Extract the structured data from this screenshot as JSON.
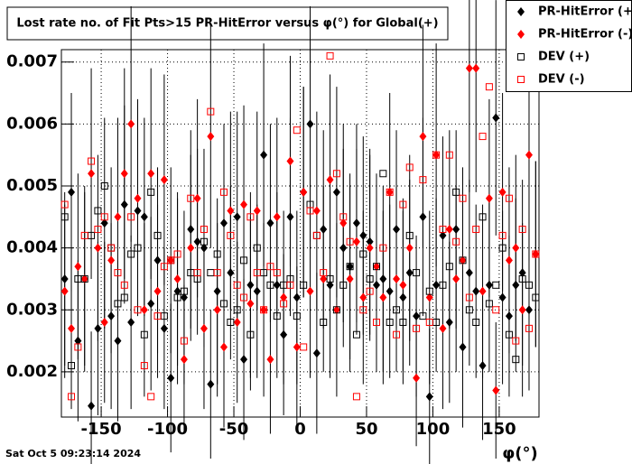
{
  "chart_data": {
    "type": "scatter",
    "title": "Lost rate no. of Fit Pts>15 PR-HitError versus φ(°) for Global(+)",
    "x_label": "φ(°)",
    "timestamp": "Sat Oct  5 09:23:14 2024",
    "xlim": [
      -180,
      180
    ],
    "ylim": [
      0.00127,
      0.0072
    ],
    "xticks": [
      -150,
      -100,
      -50,
      0,
      50,
      100,
      150
    ],
    "yticks": [
      0.002,
      0.003,
      0.004,
      0.005,
      0.006,
      0.007
    ],
    "grid": true,
    "legend": "top-right",
    "x": [
      -177.5,
      -172.5,
      -167.5,
      -162.5,
      -157.5,
      -152.5,
      -147.5,
      -142.5,
      -137.5,
      -132.5,
      -127.5,
      -122.5,
      -117.5,
      -112.5,
      -107.5,
      -102.5,
      -97.5,
      -92.5,
      -87.5,
      -82.5,
      -77.5,
      -72.5,
      -67.5,
      -62.5,
      -57.5,
      -52.5,
      -47.5,
      -42.5,
      -37.5,
      -32.5,
      -27.5,
      -22.5,
      -17.5,
      -12.5,
      -7.5,
      -2.5,
      2.5,
      7.5,
      12.5,
      17.5,
      22.5,
      27.5,
      32.5,
      37.5,
      42.5,
      47.5,
      52.5,
      57.5,
      62.5,
      67.5,
      72.5,
      77.5,
      82.5,
      87.5,
      92.5,
      97.5,
      102.5,
      107.5,
      112.5,
      117.5,
      122.5,
      127.5,
      132.5,
      137.5,
      142.5,
      147.5,
      152.5,
      157.5,
      162.5,
      167.5,
      172.5,
      177.5
    ],
    "series": [
      {
        "name": "PR-HitError (+)",
        "color": "#000000",
        "marker": "diamond",
        "values": [
          0.0035,
          0.0049,
          0.0025,
          0.0035,
          0.00145,
          0.0027,
          0.0044,
          0.0029,
          0.0025,
          0.0047,
          0.0028,
          0.0046,
          0.0045,
          0.0031,
          0.0038,
          0.0027,
          0.0019,
          0.0033,
          0.0032,
          0.0043,
          0.0041,
          0.004,
          0.0018,
          0.0033,
          0.0044,
          0.0036,
          0.0045,
          0.0022,
          0.0034,
          0.0033,
          0.0055,
          0.0044,
          0.0034,
          0.0026,
          0.0045,
          0.0032,
          0.0049,
          0.006,
          0.0023,
          0.0043,
          0.0034,
          0.0049,
          0.004,
          0.0037,
          0.0044,
          0.0042,
          0.0041,
          0.0034,
          0.0035,
          0.0033,
          0.0043,
          0.0032,
          0.0036,
          0.0029,
          0.0045,
          0.0016,
          0.0034,
          0.0042,
          0.0028,
          0.0043,
          0.0024,
          0.0036,
          0.0033,
          0.0021,
          0.0034,
          0.0061,
          0.0032,
          0.0029,
          0.0034,
          0.0036,
          0.003,
          0.0039
        ],
        "errors": [
          0.0014,
          0.0016,
          0.0013,
          0.0015,
          0.0012,
          0.0014,
          0.0017,
          0.0015,
          0.0013,
          0.0016,
          0.0014,
          0.0017,
          0.0016,
          0.0014,
          0.0015,
          0.0013,
          0.0012,
          0.0015,
          0.0014,
          0.0016,
          0.0015,
          0.0016,
          0.0012,
          0.0015,
          0.0016,
          0.0014,
          0.0017,
          0.0013,
          0.0015,
          0.0014,
          0.0018,
          0.0016,
          0.0015,
          0.0013,
          0.0016,
          0.0014,
          0.0017,
          0.0019,
          0.0013,
          0.0016,
          0.0015,
          0.0017,
          0.0016,
          0.0015,
          0.0016,
          0.0016,
          0.0015,
          0.0014,
          0.0015,
          0.0014,
          0.0016,
          0.0014,
          0.0015,
          0.0013,
          0.0016,
          0.0011,
          0.0014,
          0.0016,
          0.0013,
          0.0016,
          0.0013,
          0.0015,
          0.0014,
          0.0012,
          0.0014,
          0.0019,
          0.0014,
          0.0013,
          0.0014,
          0.0015,
          0.0013,
          0.0015
        ]
      },
      {
        "name": "PR-HitError (-)",
        "color": "#ff0000",
        "marker": "diamond",
        "values": [
          0.0033,
          0.0027,
          0.0037,
          0.0035,
          0.0052,
          0.004,
          0.0028,
          0.0038,
          0.0045,
          0.0052,
          0.006,
          0.0048,
          0.003,
          0.0052,
          0.0033,
          0.0051,
          0.0038,
          0.0035,
          0.0022,
          0.004,
          0.0048,
          0.0027,
          0.0058,
          0.003,
          0.0024,
          0.0046,
          0.0028,
          0.0047,
          0.0031,
          0.0046,
          0.003,
          0.0022,
          0.0045,
          0.0032,
          0.0054,
          0.0024,
          0.0049,
          0.0033,
          0.0046,
          0.0035,
          0.0051,
          0.003,
          0.0044,
          0.0035,
          0.0041,
          0.0032,
          0.004,
          0.0037,
          0.0032,
          0.0049,
          0.0035,
          0.0034,
          0.004,
          0.0019,
          0.0058,
          0.0032,
          0.0055,
          0.0027,
          0.0043,
          0.0035,
          0.0038,
          0.0069,
          0.0069,
          0.0033,
          0.0048,
          0.0017,
          0.0049,
          0.0038,
          0.004,
          0.003,
          0.0055,
          0.0039
        ],
        "errors": [
          0.0014,
          0.0013,
          0.0015,
          0.0014,
          0.0017,
          0.0015,
          0.0013,
          0.0015,
          0.0016,
          0.0017,
          0.0019,
          0.0016,
          0.0014,
          0.0017,
          0.0014,
          0.0017,
          0.0015,
          0.0014,
          0.0012,
          0.0015,
          0.0016,
          0.0013,
          0.0018,
          0.0014,
          0.0013,
          0.0016,
          0.0013,
          0.0016,
          0.0014,
          0.0016,
          0.0014,
          0.0012,
          0.0016,
          0.0014,
          0.0017,
          0.0013,
          0.0017,
          0.0014,
          0.0016,
          0.0015,
          0.0017,
          0.0014,
          0.0016,
          0.0015,
          0.0015,
          0.0014,
          0.0015,
          0.0015,
          0.0014,
          0.0016,
          0.0015,
          0.0014,
          0.0015,
          0.0011,
          0.0018,
          0.0014,
          0.0018,
          0.0013,
          0.0016,
          0.0015,
          0.0015,
          0.002,
          0.002,
          0.0014,
          0.0016,
          0.0011,
          0.0016,
          0.0015,
          0.0015,
          0.0014,
          0.0017,
          0.0015
        ]
      },
      {
        "name": "DEV (+)",
        "color": "#000000",
        "marker": "square-open",
        "values": [
          0.0045,
          0.0021,
          0.0035,
          0.0035,
          0.0042,
          0.0046,
          0.005,
          0.004,
          0.0031,
          0.0032,
          0.0039,
          0.004,
          0.0026,
          0.0049,
          0.0042,
          0.0029,
          0.0038,
          0.0032,
          0.0033,
          0.0036,
          0.0035,
          0.0041,
          0.0036,
          0.0039,
          0.0031,
          0.0028,
          0.003,
          0.0038,
          0.0026,
          0.004,
          0.0036,
          0.0034,
          0.0029,
          0.0034,
          0.0035,
          0.0029,
          0.0034,
          0.0047,
          0.0042,
          0.0028,
          0.0035,
          0.003,
          0.0034,
          0.0037,
          0.0026,
          0.0039,
          0.0035,
          0.0037,
          0.0052,
          0.0028,
          0.003,
          0.0028,
          0.0042,
          0.0036,
          0.0029,
          0.0033,
          0.0028,
          0.0034,
          0.0037,
          0.0049,
          0.0038,
          0.003,
          0.0028,
          0.0045,
          0.0031,
          0.0034,
          0.004,
          0.0026,
          0.0022,
          0.0035,
          0.0034,
          0.0032
        ]
      },
      {
        "name": "DEV (-)",
        "color": "#ff0000",
        "marker": "square-open",
        "values": [
          0.0047,
          0.0016,
          0.0024,
          0.0042,
          0.0054,
          0.0043,
          0.0045,
          0.004,
          0.0036,
          0.0034,
          0.0045,
          0.003,
          0.0021,
          0.0016,
          0.0029,
          0.0037,
          0.0038,
          0.0039,
          0.0025,
          0.0048,
          0.0036,
          0.0043,
          0.0062,
          0.0036,
          0.0049,
          0.0042,
          0.0034,
          0.0032,
          0.0045,
          0.0036,
          0.003,
          0.0037,
          0.0036,
          0.0031,
          0.0034,
          0.0059,
          0.0024,
          0.0046,
          0.0042,
          0.0036,
          0.0071,
          0.0052,
          0.0045,
          0.0041,
          0.0016,
          0.003,
          0.0033,
          0.0028,
          0.004,
          0.0049,
          0.0026,
          0.0047,
          0.0053,
          0.0027,
          0.0051,
          0.0028,
          0.0055,
          0.0043,
          0.0055,
          0.0041,
          0.0048,
          0.0032,
          0.0043,
          0.0058,
          0.0066,
          0.003,
          0.0042,
          0.0048,
          0.0025,
          0.0043,
          0.0027,
          0.0039
        ]
      }
    ]
  }
}
